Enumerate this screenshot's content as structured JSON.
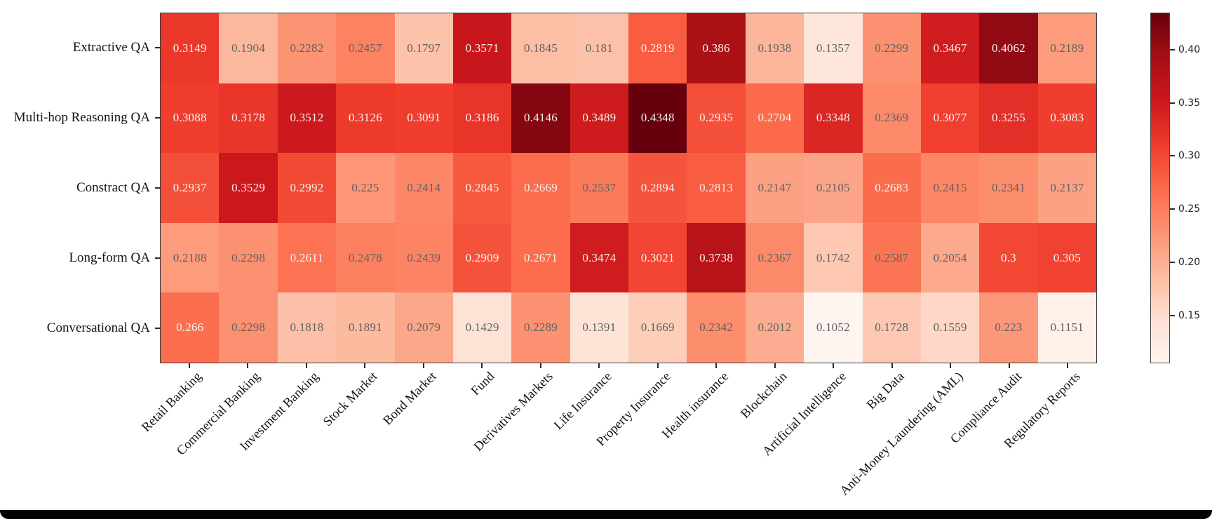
{
  "chart_data": {
    "type": "heatmap",
    "title": "",
    "rows": [
      "Extractive QA",
      "Multi-hop Reasoning QA",
      "Constract QA",
      "Long-form QA",
      "Conversational QA"
    ],
    "columns": [
      "Retail Banking",
      "Commercial Banking",
      "Investment Banking",
      "Stock Market",
      "Bond Market",
      "Fund",
      "Derivatives Markets",
      "Life Insurance",
      "Property Insurance",
      "Health insurance",
      "Blockchain",
      "Artificial Intelligence",
      "Big Data",
      "Anti-Money Laundering (AML)",
      "Compliance Audit",
      "Regulatory Reports"
    ],
    "values": [
      [
        0.3149,
        0.1904,
        0.2282,
        0.2457,
        0.1797,
        0.3571,
        0.1845,
        0.181,
        0.2819,
        0.386,
        0.1938,
        0.1357,
        0.2299,
        0.3467,
        0.4062,
        0.2189
      ],
      [
        0.3088,
        0.3178,
        0.3512,
        0.3126,
        0.3091,
        0.3186,
        0.4146,
        0.3489,
        0.4348,
        0.2935,
        0.2704,
        0.3348,
        0.2369,
        0.3077,
        0.3255,
        0.3083
      ],
      [
        0.2937,
        0.3529,
        0.2992,
        0.225,
        0.2414,
        0.2845,
        0.2669,
        0.2537,
        0.2894,
        0.2813,
        0.2147,
        0.2105,
        0.2683,
        0.2415,
        0.2341,
        0.2137
      ],
      [
        0.2188,
        0.2298,
        0.2611,
        0.2478,
        0.2439,
        0.2909,
        0.2671,
        0.3474,
        0.3021,
        0.3738,
        0.2367,
        0.1742,
        0.2587,
        0.2054,
        0.3,
        0.305
      ],
      [
        0.266,
        0.2298,
        0.1818,
        0.1891,
        0.2079,
        0.1429,
        0.2289,
        0.1391,
        0.1669,
        0.2342,
        0.2012,
        0.1052,
        0.1728,
        0.1559,
        0.223,
        0.1151
      ]
    ],
    "vmin": 0.1052,
    "vmax": 0.4348,
    "colormap": "Reds",
    "colormap_anchors": [
      "#fff5f0",
      "#fee0d2",
      "#fcbba1",
      "#fc9272",
      "#fb6a4a",
      "#ef3b2c",
      "#cb181d",
      "#a50f15",
      "#67000d"
    ],
    "colorbar_ticks": [
      0.15,
      0.2,
      0.25,
      0.3,
      0.35,
      0.4
    ],
    "legend_position": "right",
    "grid": false,
    "annotations_shown": true,
    "x_tick_rotation_deg": 45
  },
  "colors": {
    "annotation_light": "#f7f3f2",
    "annotation_dark": "#616161",
    "axis_text": "#141414",
    "frame": "#3a3a3a",
    "bottom_bar": "#000000"
  }
}
